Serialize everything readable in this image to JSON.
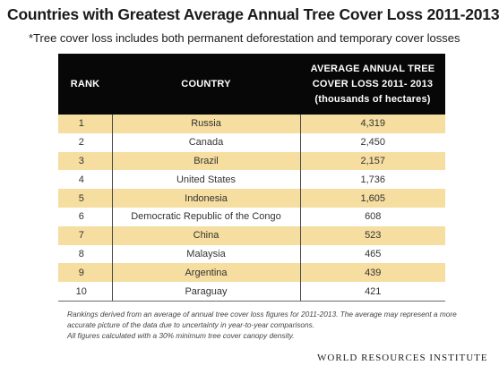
{
  "title": "Countries with Greatest Average Annual Tree Cover Loss 2011-2013",
  "subtitle": "*Tree cover loss includes both permanent deforestation and temporary cover losses",
  "chart_data": {
    "type": "table",
    "columns": [
      "RANK",
      "COUNTRY",
      "AVERAGE ANNUAL TREE COVER LOSS 2011- 2013 (thousands of hectares)"
    ],
    "column_lines": [
      "AVERAGE ANNUAL TREE",
      "COVER LOSS 2011- 2013",
      "(thousands of hectares)"
    ],
    "rows": [
      [
        "1",
        "Russia",
        "4,319"
      ],
      [
        "2",
        "Canada",
        "2,450"
      ],
      [
        "3",
        "Brazil",
        "2,157"
      ],
      [
        "4",
        "United States",
        "1,736"
      ],
      [
        "5",
        "Indonesia",
        "1,605"
      ],
      [
        "6",
        "Democratic Republic of the Congo",
        "608"
      ],
      [
        "7",
        "China",
        "523"
      ],
      [
        "8",
        "Malaysia",
        "465"
      ],
      [
        "9",
        "Argentina",
        "439"
      ],
      [
        "10",
        "Paraguay",
        "421"
      ]
    ]
  },
  "footnotes": [
    "Rankings derived from an average of annual tree cover loss figures for 2011-2013. The average may represent a more accurate picture of the data due to uncertainty  in year-to-year comparisons.",
    "All figures calculated with a 30% minimum tree cover canopy density."
  ],
  "logo": {
    "text": "WORLD RESOURCES INSTITUTE",
    "icon": "wri-mark-icon"
  },
  "colors": {
    "header_bg": "#070707",
    "stripe": "#f6dda0",
    "text": "#333333"
  }
}
